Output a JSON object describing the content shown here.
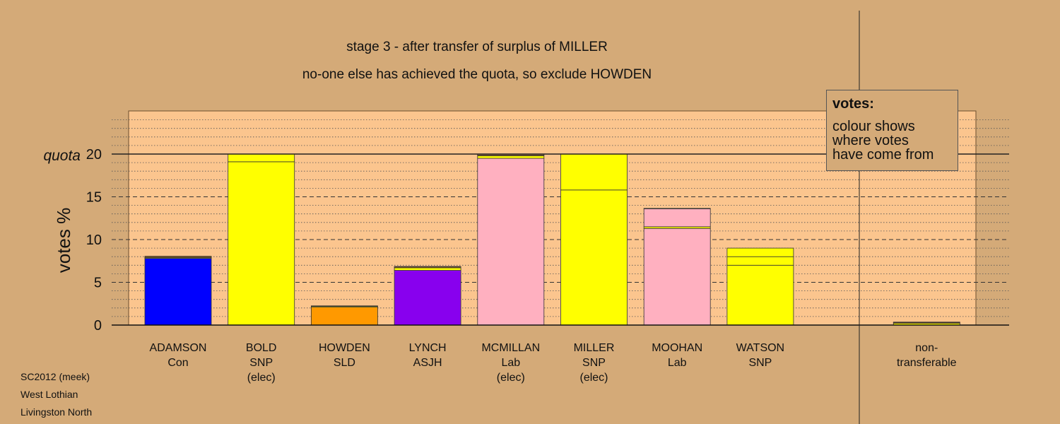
{
  "title_line1": "stage 3 - after transfer of surplus of MILLER",
  "title_line2": "no-one else has achieved the quota, so exclude HOWDEN",
  "legend": {
    "title": "votes:",
    "lines": [
      "colour shows",
      "where votes",
      "have come from"
    ]
  },
  "footer": [
    "SC2012 (meek)",
    "West Lothian",
    "Livingston North"
  ],
  "colors": {
    "background": "#d4aa78",
    "plot_area": "#fbc58e",
    "Con": "#0000ff",
    "SNP": "#ffff00",
    "SLD": "#ff9900",
    "ASJH": "#8800ee",
    "Lab": "#ffb0c0"
  },
  "chart_data": {
    "type": "bar",
    "stacked": true,
    "ylabel": "votes %",
    "ylim": [
      0,
      25
    ],
    "yticks": [
      0,
      5,
      10,
      15,
      20
    ],
    "quota": 20,
    "quota_label": "quota",
    "grid": "dashed major lines at 5, 10, 15; dotted minor lines every 1",
    "categories": [
      {
        "name": "ADAMSON",
        "party": "Con",
        "elected": ""
      },
      {
        "name": "BOLD",
        "party": "SNP",
        "elected": "(elec)"
      },
      {
        "name": "HOWDEN",
        "party": "SLD",
        "elected": ""
      },
      {
        "name": "LYNCH",
        "party": "ASJH",
        "elected": ""
      },
      {
        "name": "MCMILLAN",
        "party": "Lab",
        "elected": "(elec)"
      },
      {
        "name": "MILLER",
        "party": "SNP",
        "elected": "(elec)"
      },
      {
        "name": "MOOHAN",
        "party": "Lab",
        "elected": ""
      },
      {
        "name": "WATSON",
        "party": "SNP",
        "elected": ""
      },
      {
        "name": "",
        "party": "",
        "elected": ""
      },
      {
        "name": "non-",
        "party": "transferable",
        "elected": ""
      }
    ],
    "stacks": [
      [
        {
          "from": "Con",
          "value": 7.8
        },
        {
          "from": "SNP",
          "value": 0.1
        },
        {
          "from": "SLD",
          "value": 0.1
        },
        {
          "from": "ASJH",
          "value": 0.05
        }
      ],
      [
        {
          "from": "SNP",
          "value": 19.1
        },
        {
          "from": "SNP",
          "value": 0.9
        }
      ],
      [
        {
          "from": "SLD",
          "value": 2.1
        },
        {
          "from": "SNP",
          "value": 0.1
        },
        {
          "from": "ASJH",
          "value": 0.05
        }
      ],
      [
        {
          "from": "ASJH",
          "value": 6.4
        },
        {
          "from": "SNP",
          "value": 0.3
        },
        {
          "from": "SLD",
          "value": 0.1
        },
        {
          "from": "Lab",
          "value": 0.05
        }
      ],
      [
        {
          "from": "Lab",
          "value": 19.5
        },
        {
          "from": "SNP",
          "value": 0.3
        },
        {
          "from": "SLD",
          "value": 0.1
        },
        {
          "from": "Lab",
          "value": 0.1
        }
      ],
      [
        {
          "from": "SNP",
          "value": 15.8
        },
        {
          "from": "SNP",
          "value": 4.2
        }
      ],
      [
        {
          "from": "Lab",
          "value": 11.3
        },
        {
          "from": "SNP",
          "value": 0.2
        },
        {
          "from": "Lab",
          "value": 2.1
        },
        {
          "from": "SLD",
          "value": 0.05
        }
      ],
      [
        {
          "from": "SNP",
          "value": 7.0
        },
        {
          "from": "SNP",
          "value": 1.0
        },
        {
          "from": "SNP",
          "value": 1.0
        }
      ],
      [],
      [
        {
          "from": "SNP",
          "value": 0.2
        },
        {
          "from": "SLD",
          "value": 0.1
        },
        {
          "from": "ASJH",
          "value": 0.05
        }
      ]
    ]
  }
}
